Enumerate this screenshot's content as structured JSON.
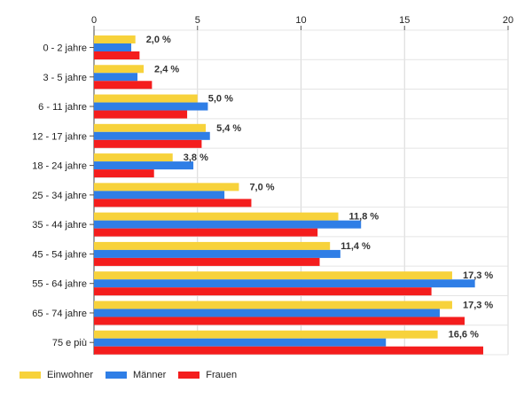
{
  "chart_data": {
    "type": "bar",
    "orientation": "horizontal",
    "categories": [
      "0 - 2 jahre",
      "3 - 5 jahre",
      "6 - 11 jahre",
      "12 - 17 jahre",
      "18 - 24 jahre",
      "25 - 34 jahre",
      "35 - 44 jahre",
      "45 - 54 jahre",
      "55 - 64 jahre",
      "65 - 74 jahre",
      "75 e più"
    ],
    "series": [
      {
        "name": "Einwohner",
        "color": "#f7d23b",
        "values": [
          2.0,
          2.4,
          5.0,
          5.4,
          3.8,
          7.0,
          11.8,
          11.4,
          17.3,
          17.3,
          16.6
        ]
      },
      {
        "name": "Männer",
        "color": "#2f7ee6",
        "values": [
          1.8,
          2.1,
          5.5,
          5.6,
          4.8,
          6.3,
          12.9,
          11.9,
          18.4,
          16.7,
          14.1
        ]
      },
      {
        "name": "Frauen",
        "color": "#f41d1d",
        "values": [
          2.2,
          2.8,
          4.5,
          5.2,
          2.9,
          7.6,
          10.8,
          10.9,
          16.3,
          17.9,
          18.8
        ]
      }
    ],
    "data_labels": [
      "2,0 %",
      "2,4 %",
      "5,0 %",
      "5,4 %",
      "3,8 %",
      "7,0 %",
      "11,8 %",
      "11,4 %",
      "17,3 %",
      "17,3 %",
      "16,6 %"
    ],
    "x_ticks": [
      "0",
      "5",
      "10",
      "15",
      "20"
    ],
    "xlim": [
      0,
      20
    ],
    "x_axis_position": "top",
    "grid": true,
    "legend_position": "bottom-left"
  }
}
